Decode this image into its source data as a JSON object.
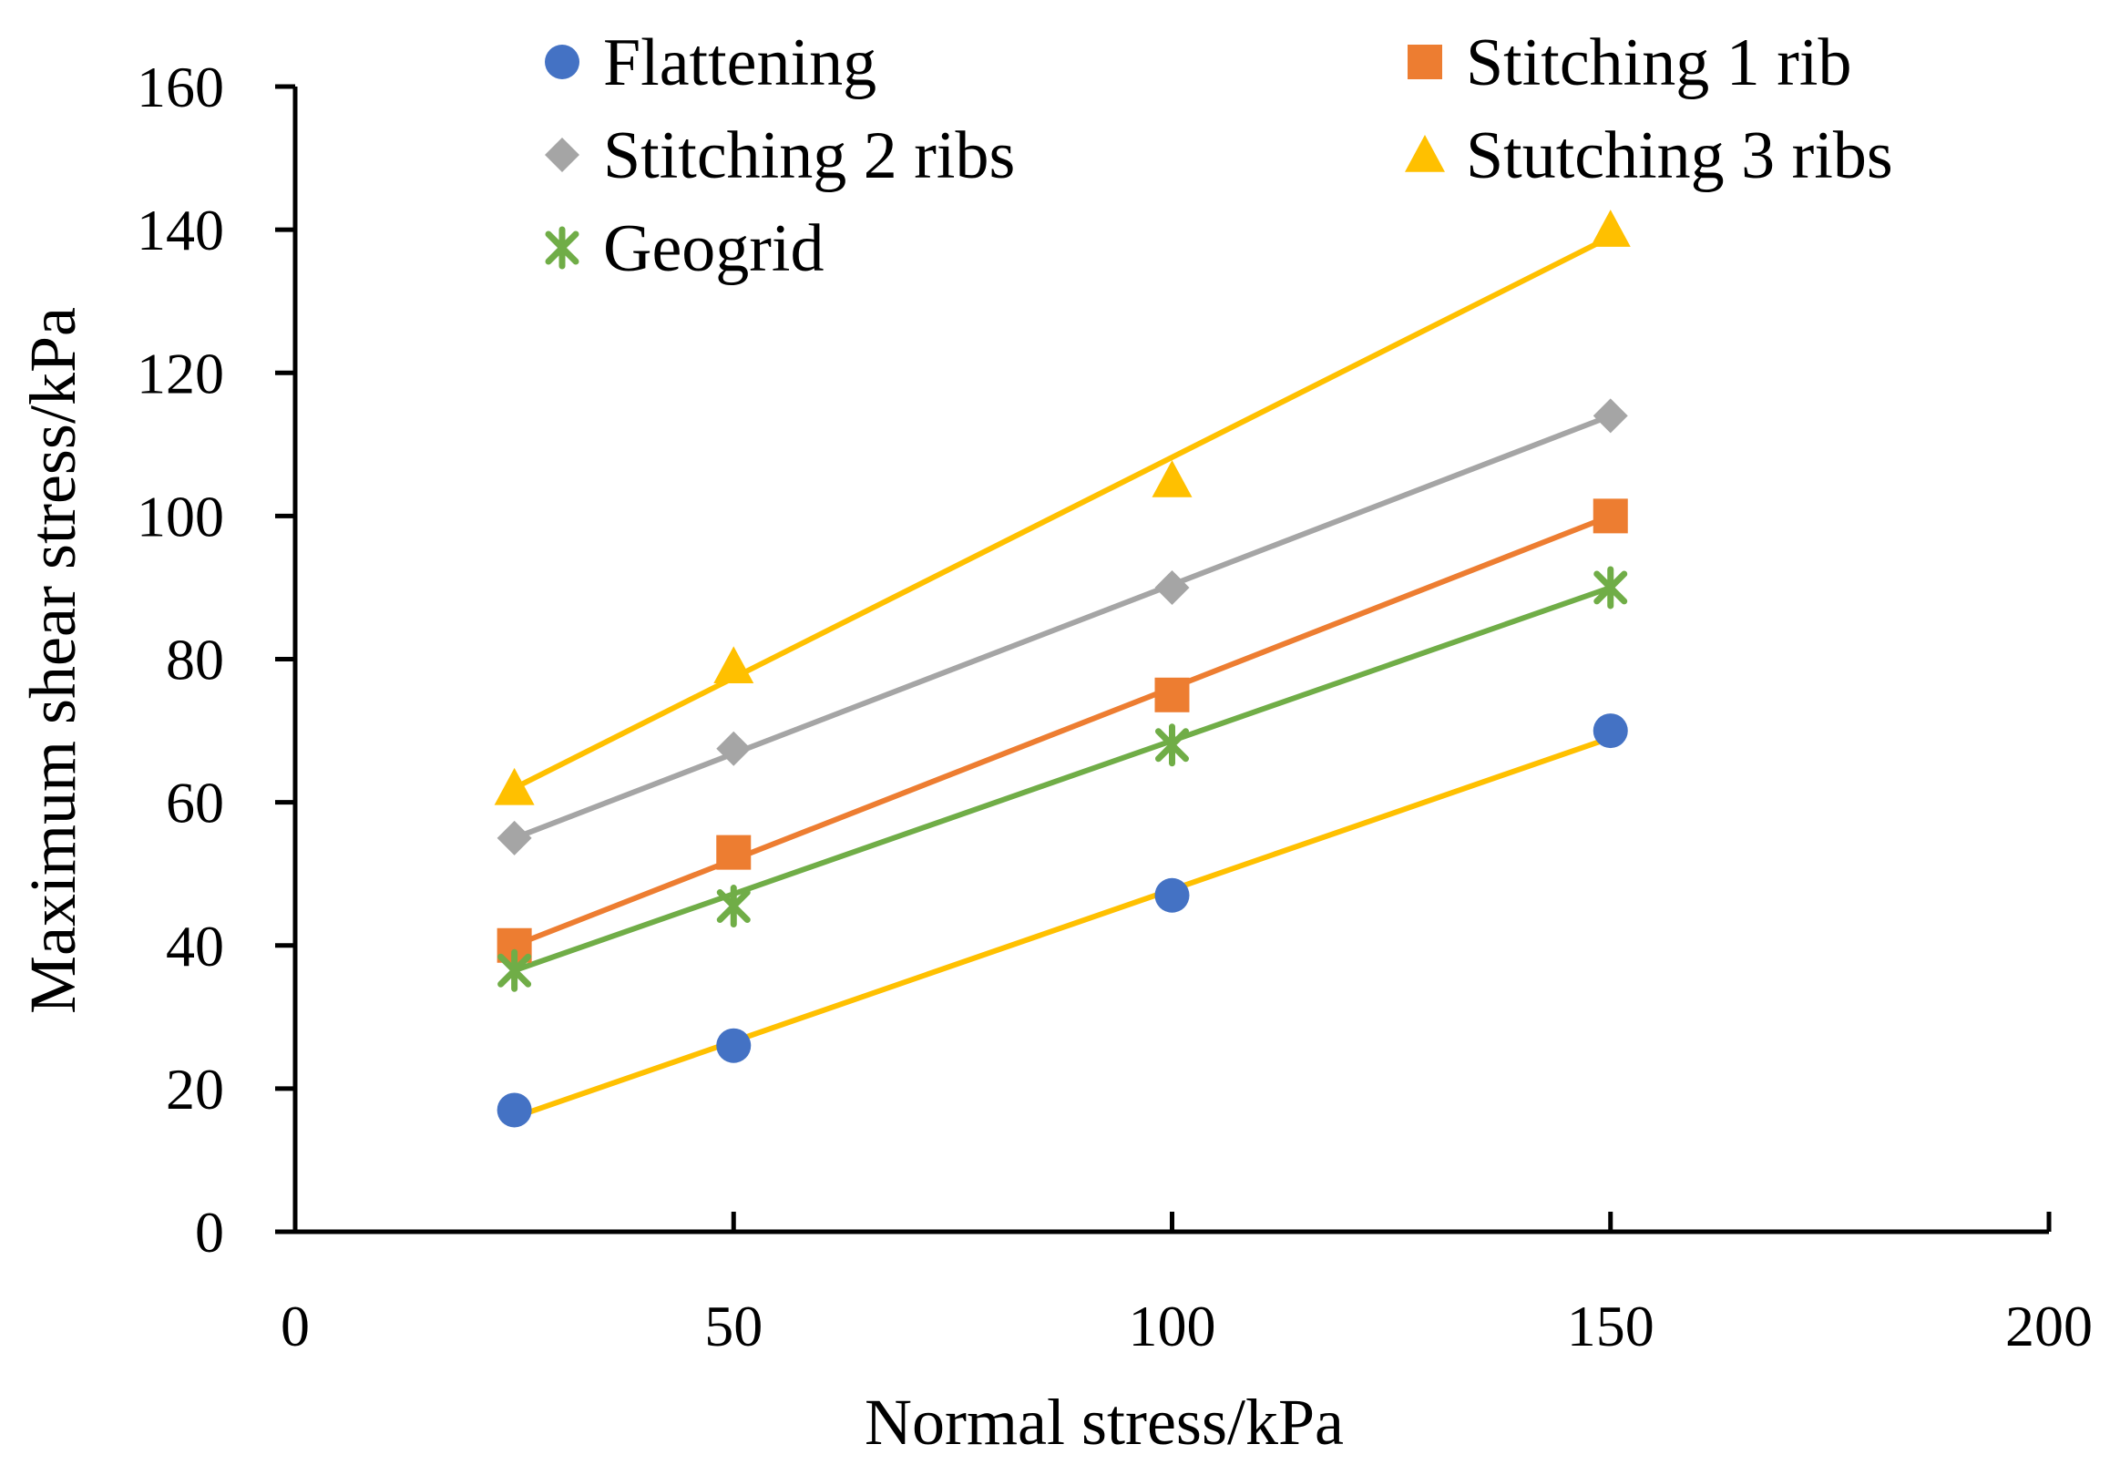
{
  "chart_data": {
    "type": "scatter",
    "title": "",
    "xlabel": "Normal stress/kPa",
    "ylabel": "Maximum shear stress/kPa",
    "xlim": [
      0,
      200
    ],
    "ylim": [
      0,
      160
    ],
    "xticks": [
      0,
      50,
      100,
      150,
      200
    ],
    "yticks": [
      0,
      20,
      40,
      60,
      80,
      100,
      120,
      140,
      160
    ],
    "grid": false,
    "legend_position": "top",
    "series": [
      {
        "name": "Flattening",
        "marker": "circle",
        "color": "#4472C4",
        "line_color": "#FFC000",
        "x": [
          25,
          50,
          100,
          150
        ],
        "y": [
          17,
          26,
          47,
          70
        ],
        "fit_line": {
          "x": [
            25,
            150
          ],
          "y": [
            16,
            69
          ]
        }
      },
      {
        "name": "Stitching 1 rib",
        "marker": "square",
        "color": "#ED7D31",
        "line_color": "#ED7D31",
        "x": [
          25,
          50,
          100,
          150
        ],
        "y": [
          40,
          53,
          75,
          100
        ],
        "fit_line": {
          "x": [
            25,
            150
          ],
          "y": [
            40,
            100
          ]
        }
      },
      {
        "name": "Stitching 2 ribs",
        "marker": "diamond",
        "color": "#A5A5A5",
        "line_color": "#A5A5A5",
        "x": [
          25,
          50,
          100,
          150
        ],
        "y": [
          55,
          67.5,
          90,
          114
        ],
        "fit_line": {
          "x": [
            25,
            150
          ],
          "y": [
            55,
            114
          ]
        }
      },
      {
        "name": "Stutching 3 ribs",
        "marker": "triangle",
        "color": "#FFC000",
        "line_color": "#FFC000",
        "x": [
          25,
          50,
          100,
          150
        ],
        "y": [
          62,
          79,
          105,
          140
        ],
        "fit_line": {
          "x": [
            25,
            150
          ],
          "y": [
            62,
            139
          ]
        }
      },
      {
        "name": "Geogrid",
        "marker": "star",
        "color": "#70AD47",
        "line_color": "#70AD47",
        "x": [
          25,
          50,
          100,
          150
        ],
        "y": [
          36.5,
          45.5,
          68,
          90
        ],
        "fit_line": {
          "x": [
            25,
            150
          ],
          "y": [
            36.5,
            90
          ]
        }
      }
    ]
  }
}
